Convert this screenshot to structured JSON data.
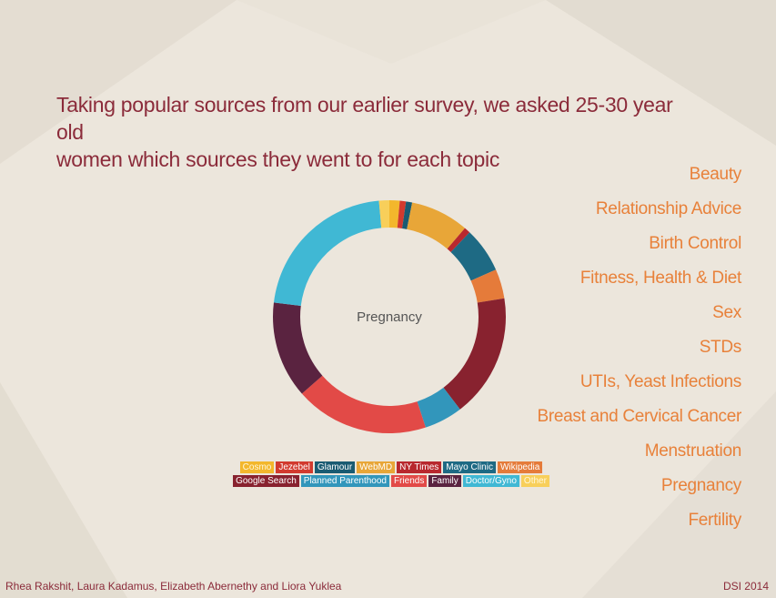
{
  "title_line1": "Taking popular sources from our earlier survey, we asked 25-30 year old",
  "title_line2": "women which sources they went to for each topic",
  "topics": [
    "Beauty",
    "Relationship Advice",
    "Birth Control",
    "Fitness, Health & Diet",
    "Sex",
    "STDs",
    "UTIs, Yeast Infections",
    "Breast and Cervical Cancer",
    "Menstruation",
    "Pregnancy",
    "Fertility"
  ],
  "footer": {
    "authors": "Rhea Rakshit, Laura Kadamus, Elizabeth Abernethy and Liora Yuklea",
    "right": "DSI 2014"
  },
  "chart_data": {
    "type": "donut",
    "center_label": "Pregnancy",
    "slices": [
      {
        "name": "Cosmo",
        "value": 1.5,
        "color": "#f3b72c"
      },
      {
        "name": "Jezebel",
        "value": 0.9,
        "color": "#d23a2e"
      },
      {
        "name": "Glamour",
        "value": 0.9,
        "color": "#1a5b72"
      },
      {
        "name": "WebMD",
        "value": 8.5,
        "color": "#e8a638"
      },
      {
        "name": "NY Times",
        "value": 0.9,
        "color": "#b8282e"
      },
      {
        "name": "Mayo Clinic",
        "value": 6.6,
        "color": "#1e6a84"
      },
      {
        "name": "Wikipedia",
        "value": 4.3,
        "color": "#e57b3a"
      },
      {
        "name": "Google Search",
        "value": 18.0,
        "color": "#88222f"
      },
      {
        "name": "Planned Parenthood",
        "value": 5.6,
        "color": "#3296bb"
      },
      {
        "name": "Friends",
        "value": 19.5,
        "color": "#e24a47"
      },
      {
        "name": "Family",
        "value": 14.1,
        "color": "#5a2340"
      },
      {
        "name": "Doctor/Gyno",
        "value": 22.7,
        "color": "#40b8d4"
      },
      {
        "name": "Other",
        "value": 1.5,
        "color": "#f8cf5a"
      }
    ]
  },
  "legend_rows": [
    [
      "Cosmo",
      "Jezebel",
      "Glamour",
      "WebMD",
      "NY Times",
      "Mayo Clinic",
      "Wikipedia"
    ],
    [
      "Google Search",
      "Planned Parenthood",
      "Friends",
      "Family",
      "Doctor/Gyno",
      "Other"
    ]
  ]
}
